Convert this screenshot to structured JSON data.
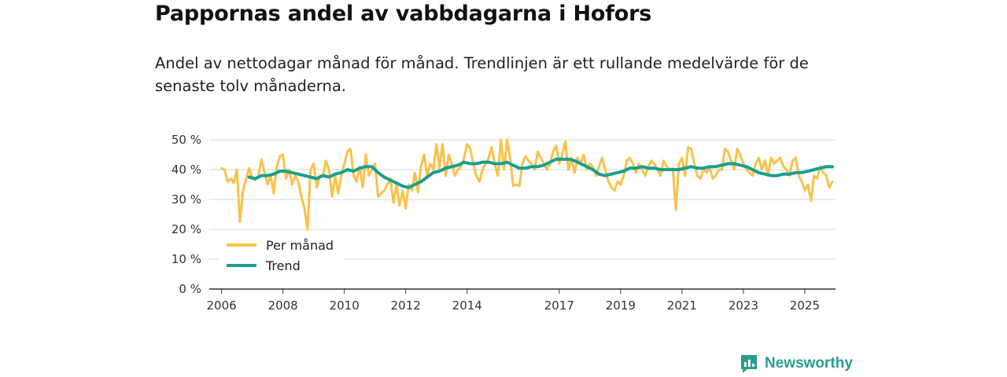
{
  "title": "Pappornas andel av vabbdagarna i Hofors",
  "subtitle": "Andel av nettodagar månad för månad. Trendlinjen är ett rullande medelvärde för de senaste tolv månaderna.",
  "brand": {
    "name": "Newsworthy",
    "icon": "newsworthy-logo-icon"
  },
  "colors": {
    "monthly": "#f9c24a",
    "trend": "#1b9e8f",
    "grid": "#d9d9d9",
    "axis": "#333333"
  },
  "chart_data": {
    "type": "line",
    "title": "Pappornas andel av vabbdagarna i Hofors",
    "xlabel": "",
    "ylabel": "",
    "xlim": [
      2005.6,
      2026.0
    ],
    "ylim": [
      0,
      50
    ],
    "y_ticks": [
      0,
      10,
      20,
      30,
      40,
      50
    ],
    "y_tick_labels": [
      "0 %",
      "10 %",
      "20 %",
      "30 %",
      "40 %",
      "50 %"
    ],
    "x_ticks": [
      2006,
      2008,
      2010,
      2012,
      2014,
      2017,
      2019,
      2021,
      2023,
      2025
    ],
    "x_tick_labels": [
      "2006",
      "2008",
      "2010",
      "2012",
      "2014",
      "2017",
      "2019",
      "2021",
      "2023",
      "2025"
    ],
    "grid": true,
    "legend_position": "bottom-left",
    "series": [
      {
        "name": "Per månad",
        "color": "#f9c24a",
        "points": [
          [
            2006.0,
            40.5
          ],
          [
            2006.1,
            40
          ],
          [
            2006.2,
            36
          ],
          [
            2006.3,
            37
          ],
          [
            2006.4,
            35.5
          ],
          [
            2006.5,
            40
          ],
          [
            2006.6,
            22.5
          ],
          [
            2006.7,
            33
          ],
          [
            2006.8,
            37
          ],
          [
            2006.9,
            40.5
          ],
          [
            2007.0,
            37
          ],
          [
            2007.1,
            36.5
          ],
          [
            2007.2,
            38
          ],
          [
            2007.3,
            43.5
          ],
          [
            2007.4,
            39
          ],
          [
            2007.5,
            35
          ],
          [
            2007.6,
            38
          ],
          [
            2007.7,
            32
          ],
          [
            2007.8,
            41
          ],
          [
            2007.9,
            44.5
          ],
          [
            2008.0,
            45
          ],
          [
            2008.1,
            37
          ],
          [
            2008.2,
            40
          ],
          [
            2008.3,
            35
          ],
          [
            2008.4,
            38
          ],
          [
            2008.5,
            36
          ],
          [
            2008.6,
            31
          ],
          [
            2008.7,
            27
          ],
          [
            2008.8,
            20
          ],
          [
            2008.9,
            40
          ],
          [
            2009.0,
            42
          ],
          [
            2009.1,
            34
          ],
          [
            2009.2,
            38
          ],
          [
            2009.3,
            38
          ],
          [
            2009.4,
            43
          ],
          [
            2009.5,
            40
          ],
          [
            2009.6,
            31
          ],
          [
            2009.7,
            38
          ],
          [
            2009.8,
            32
          ],
          [
            2009.9,
            38
          ],
          [
            2010.0,
            42
          ],
          [
            2010.1,
            46
          ],
          [
            2010.2,
            47
          ],
          [
            2010.3,
            38
          ],
          [
            2010.4,
            36
          ],
          [
            2010.5,
            41
          ],
          [
            2010.6,
            34
          ],
          [
            2010.7,
            45
          ],
          [
            2010.8,
            38
          ],
          [
            2010.9,
            40
          ],
          [
            2011.0,
            42
          ],
          [
            2011.1,
            31
          ],
          [
            2011.2,
            32
          ],
          [
            2011.3,
            33
          ],
          [
            2011.4,
            35
          ],
          [
            2011.5,
            37
          ],
          [
            2011.6,
            29
          ],
          [
            2011.7,
            35
          ],
          [
            2011.8,
            28
          ],
          [
            2011.9,
            33
          ],
          [
            2012.0,
            27
          ],
          [
            2012.1,
            35
          ],
          [
            2012.2,
            33
          ],
          [
            2012.3,
            39
          ],
          [
            2012.4,
            32.5
          ],
          [
            2012.5,
            41
          ],
          [
            2012.6,
            45
          ],
          [
            2012.7,
            38
          ],
          [
            2012.8,
            42
          ],
          [
            2012.9,
            40
          ],
          [
            2013.0,
            48.5
          ],
          [
            2013.1,
            40.5
          ],
          [
            2013.2,
            48.5
          ],
          [
            2013.3,
            38
          ],
          [
            2013.4,
            45
          ],
          [
            2013.5,
            42
          ],
          [
            2013.6,
            38
          ],
          [
            2013.7,
            40
          ],
          [
            2013.8,
            41
          ],
          [
            2013.9,
            44
          ],
          [
            2014.0,
            48.5
          ],
          [
            2014.1,
            47
          ],
          [
            2014.2,
            42
          ],
          [
            2014.3,
            38
          ],
          [
            2014.4,
            36
          ],
          [
            2014.5,
            40
          ],
          [
            2014.6,
            42
          ],
          [
            2014.7,
            44
          ],
          [
            2014.8,
            47.5
          ],
          [
            2014.9,
            42
          ],
          [
            2015.0,
            38
          ],
          [
            2015.1,
            50
          ],
          [
            2015.2,
            40
          ],
          [
            2015.3,
            50
          ],
          [
            2015.4,
            44
          ],
          [
            2015.5,
            34.5
          ],
          [
            2015.6,
            35
          ],
          [
            2015.7,
            34.5
          ],
          [
            2015.8,
            42
          ],
          [
            2015.9,
            44.5
          ],
          [
            2016.0,
            43
          ],
          [
            2016.1,
            42
          ],
          [
            2016.2,
            40
          ],
          [
            2016.3,
            46
          ],
          [
            2016.4,
            44
          ],
          [
            2016.5,
            42
          ],
          [
            2016.6,
            40
          ],
          [
            2016.7,
            42
          ],
          [
            2016.8,
            46
          ],
          [
            2016.9,
            48
          ],
          [
            2017.0,
            42
          ],
          [
            2017.1,
            45
          ],
          [
            2017.2,
            49.5
          ],
          [
            2017.3,
            40
          ],
          [
            2017.4,
            44
          ],
          [
            2017.5,
            39
          ],
          [
            2017.6,
            44
          ],
          [
            2017.7,
            42
          ],
          [
            2017.8,
            45
          ],
          [
            2017.9,
            40
          ],
          [
            2018.0,
            42
          ],
          [
            2018.1,
            41
          ],
          [
            2018.2,
            38
          ],
          [
            2018.3,
            41
          ],
          [
            2018.4,
            44
          ],
          [
            2018.5,
            40
          ],
          [
            2018.6,
            36
          ],
          [
            2018.7,
            34
          ],
          [
            2018.8,
            33
          ],
          [
            2018.9,
            36
          ],
          [
            2019.0,
            35
          ],
          [
            2019.1,
            38
          ],
          [
            2019.2,
            43
          ],
          [
            2019.3,
            44
          ],
          [
            2019.4,
            42
          ],
          [
            2019.5,
            39
          ],
          [
            2019.6,
            42
          ],
          [
            2019.7,
            40
          ],
          [
            2019.8,
            38
          ],
          [
            2019.9,
            41
          ],
          [
            2020.0,
            43
          ],
          [
            2020.1,
            42
          ],
          [
            2020.2,
            40
          ],
          [
            2020.3,
            38
          ],
          [
            2020.4,
            43
          ],
          [
            2020.5,
            41
          ],
          [
            2020.6,
            40
          ],
          [
            2020.7,
            40.5
          ],
          [
            2020.8,
            26.5
          ],
          [
            2020.9,
            42
          ],
          [
            2021.0,
            44
          ],
          [
            2021.1,
            38
          ],
          [
            2021.2,
            47.5
          ],
          [
            2021.3,
            47
          ],
          [
            2021.4,
            42
          ],
          [
            2021.5,
            38
          ],
          [
            2021.6,
            37
          ],
          [
            2021.7,
            40
          ],
          [
            2021.8,
            39
          ],
          [
            2021.9,
            41
          ],
          [
            2022.0,
            37
          ],
          [
            2022.1,
            38
          ],
          [
            2022.2,
            40
          ],
          [
            2022.3,
            40
          ],
          [
            2022.4,
            47
          ],
          [
            2022.5,
            46
          ],
          [
            2022.6,
            43
          ],
          [
            2022.7,
            40
          ],
          [
            2022.8,
            47
          ],
          [
            2022.9,
            45
          ],
          [
            2023.0,
            42
          ],
          [
            2023.1,
            40
          ],
          [
            2023.2,
            39
          ],
          [
            2023.3,
            38
          ],
          [
            2023.4,
            42
          ],
          [
            2023.5,
            44
          ],
          [
            2023.6,
            40
          ],
          [
            2023.7,
            43
          ],
          [
            2023.8,
            38
          ],
          [
            2023.9,
            44
          ],
          [
            2024.0,
            42
          ],
          [
            2024.1,
            43
          ],
          [
            2024.2,
            44
          ],
          [
            2024.3,
            41
          ],
          [
            2024.4,
            40
          ],
          [
            2024.5,
            38
          ],
          [
            2024.6,
            43
          ],
          [
            2024.7,
            44
          ],
          [
            2024.8,
            38
          ],
          [
            2024.9,
            36
          ],
          [
            2025.0,
            33
          ],
          [
            2025.1,
            35
          ],
          [
            2025.2,
            29.5
          ],
          [
            2025.3,
            38
          ],
          [
            2025.4,
            37
          ],
          [
            2025.5,
            41
          ],
          [
            2025.6,
            39
          ],
          [
            2025.7,
            38
          ],
          [
            2025.8,
            34
          ],
          [
            2025.9,
            36
          ]
        ]
      },
      {
        "name": "Trend",
        "color": "#1b9e8f",
        "points": [
          [
            2006.9,
            37.5
          ],
          [
            2007.1,
            37
          ],
          [
            2007.3,
            38
          ],
          [
            2007.5,
            38
          ],
          [
            2007.7,
            38.5
          ],
          [
            2007.9,
            39.5
          ],
          [
            2008.1,
            39.5
          ],
          [
            2008.3,
            39
          ],
          [
            2008.5,
            38.5
          ],
          [
            2008.7,
            38
          ],
          [
            2008.9,
            37.5
          ],
          [
            2009.1,
            37
          ],
          [
            2009.3,
            38
          ],
          [
            2009.5,
            37.5
          ],
          [
            2009.7,
            38.5
          ],
          [
            2009.9,
            39
          ],
          [
            2010.1,
            40
          ],
          [
            2010.3,
            39.5
          ],
          [
            2010.5,
            40.5
          ],
          [
            2010.7,
            41
          ],
          [
            2010.9,
            41
          ],
          [
            2011.1,
            39
          ],
          [
            2011.3,
            37.5
          ],
          [
            2011.5,
            36.5
          ],
          [
            2011.7,
            35.5
          ],
          [
            2011.9,
            34.5
          ],
          [
            2012.1,
            34
          ],
          [
            2012.3,
            35
          ],
          [
            2012.5,
            36
          ],
          [
            2012.7,
            37.5
          ],
          [
            2012.9,
            39
          ],
          [
            2013.1,
            39.5
          ],
          [
            2013.3,
            40.5
          ],
          [
            2013.5,
            41
          ],
          [
            2013.7,
            41.5
          ],
          [
            2013.9,
            42.5
          ],
          [
            2014.1,
            42
          ],
          [
            2014.3,
            42
          ],
          [
            2014.5,
            42.5
          ],
          [
            2014.7,
            42.5
          ],
          [
            2014.9,
            42
          ],
          [
            2015.1,
            42
          ],
          [
            2015.3,
            42.5
          ],
          [
            2015.5,
            41.5
          ],
          [
            2015.7,
            40.5
          ],
          [
            2015.9,
            40.5
          ],
          [
            2016.1,
            41
          ],
          [
            2016.3,
            41
          ],
          [
            2016.5,
            41.5
          ],
          [
            2016.7,
            42.5
          ],
          [
            2016.9,
            43.5
          ],
          [
            2017.1,
            43.5
          ],
          [
            2017.3,
            43.5
          ],
          [
            2017.5,
            43
          ],
          [
            2017.7,
            42
          ],
          [
            2017.9,
            41
          ],
          [
            2018.1,
            40
          ],
          [
            2018.3,
            38.5
          ],
          [
            2018.5,
            38
          ],
          [
            2018.7,
            38.5
          ],
          [
            2018.9,
            39
          ],
          [
            2019.1,
            39.5
          ],
          [
            2019.3,
            40.5
          ],
          [
            2019.5,
            40.5
          ],
          [
            2019.7,
            41
          ],
          [
            2019.9,
            40.5
          ],
          [
            2020.1,
            40.5
          ],
          [
            2020.3,
            40
          ],
          [
            2020.5,
            40
          ],
          [
            2020.7,
            40
          ],
          [
            2020.9,
            40
          ],
          [
            2021.1,
            40.5
          ],
          [
            2021.3,
            41
          ],
          [
            2021.5,
            40.5
          ],
          [
            2021.7,
            40.5
          ],
          [
            2021.9,
            41
          ],
          [
            2022.1,
            41
          ],
          [
            2022.3,
            41.5
          ],
          [
            2022.5,
            42
          ],
          [
            2022.7,
            42
          ],
          [
            2022.9,
            41.5
          ],
          [
            2023.1,
            41
          ],
          [
            2023.3,
            40
          ],
          [
            2023.5,
            39
          ],
          [
            2023.7,
            38.5
          ],
          [
            2023.9,
            38
          ],
          [
            2024.1,
            38
          ],
          [
            2024.3,
            38.5
          ],
          [
            2024.5,
            38.5
          ],
          [
            2024.7,
            39
          ],
          [
            2024.9,
            39
          ],
          [
            2025.1,
            39.5
          ],
          [
            2025.3,
            40
          ],
          [
            2025.5,
            40.5
          ],
          [
            2025.7,
            41
          ],
          [
            2025.9,
            41
          ]
        ]
      }
    ]
  }
}
